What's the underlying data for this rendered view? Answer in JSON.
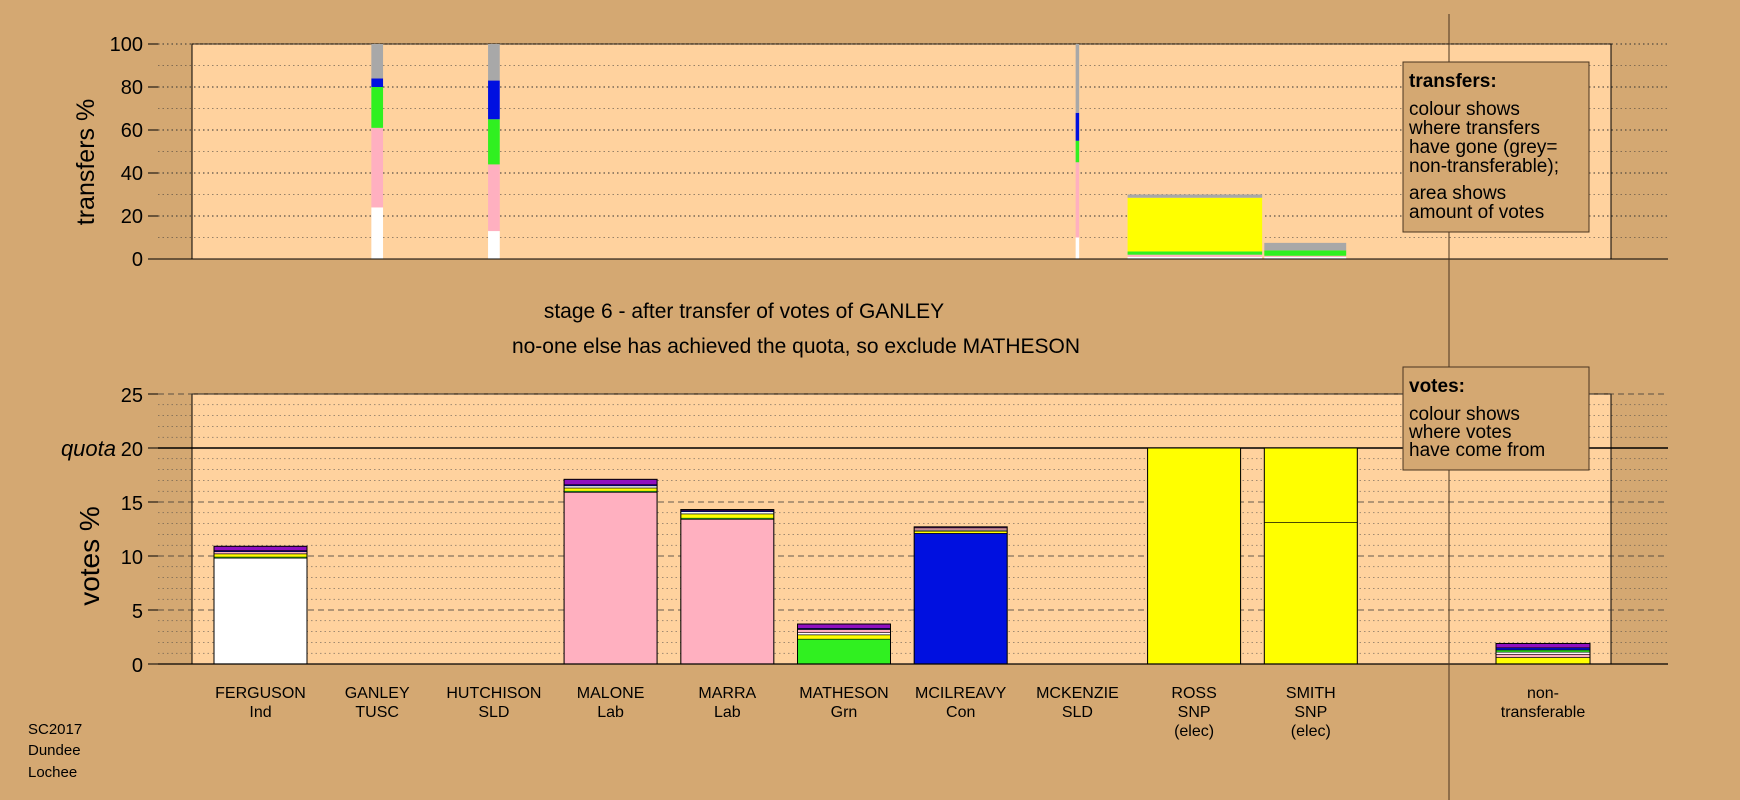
{
  "chart_data": [
    {
      "type": "bar",
      "title": "",
      "ylabel": "transfers %",
      "ylim": [
        0,
        100
      ],
      "yticks": [
        0,
        20,
        40,
        60,
        80,
        100
      ],
      "description_legend": {
        "heading": "transfers:",
        "lines_1": [
          "colour shows",
          "where transfers",
          "have gone (grey=",
          "non-transferable);"
        ],
        "lines_2": [
          "area shows",
          "amount of votes"
        ]
      },
      "bars": [
        {
          "candidate": "GANLEY",
          "width": 1,
          "segments": [
            {
              "party": "Ind",
              "value": 24
            },
            {
              "party": "Lab",
              "value": 37
            },
            {
              "party": "Grn",
              "value": 19
            },
            {
              "party": "Con",
              "value": 4
            },
            {
              "party": "NT",
              "value": 16
            }
          ]
        },
        {
          "candidate": "HUTCHISON",
          "width": 1,
          "segments": [
            {
              "party": "Ind",
              "value": 13
            },
            {
              "party": "Lab",
              "value": 31
            },
            {
              "party": "Grn",
              "value": 21
            },
            {
              "party": "Con",
              "value": 18
            },
            {
              "party": "NT",
              "value": 17
            }
          ]
        },
        {
          "candidate": "MCKENZIE",
          "width": 0.3,
          "segments": [
            {
              "party": "Ind",
              "value": 10
            },
            {
              "party": "Lab",
              "value": 35
            },
            {
              "party": "Grn",
              "value": 10
            },
            {
              "party": "Con",
              "value": 13
            },
            {
              "party": "NT",
              "value": 32
            }
          ]
        },
        {
          "candidate": "ROSS",
          "width": 11.5,
          "segments": [
            {
              "party": "Ind",
              "value": 1
            },
            {
              "party": "Lab",
              "value": 1
            },
            {
              "party": "Grn",
              "value": 1.5
            },
            {
              "party": "SNP",
              "value": 25
            },
            {
              "party": "NT",
              "value": 1.5
            }
          ]
        },
        {
          "candidate": "SMITH",
          "width": 7,
          "segments": [
            {
              "party": "Ind",
              "value": 1
            },
            {
              "party": "Lab",
              "value": 0.5
            },
            {
              "party": "Grn",
              "value": 2.5
            },
            {
              "party": "NT",
              "value": 3.5
            }
          ]
        }
      ]
    },
    {
      "type": "bar",
      "title": "stage 6 - after transfer of votes of GANLEY",
      "subtitle": "no-one else has achieved the quota, so exclude MATHESON",
      "ylabel": "votes %",
      "ylim": [
        0,
        25
      ],
      "yticks": [
        0,
        5,
        10,
        15,
        20,
        25
      ],
      "quota": 20,
      "quota_label": "quota",
      "description_legend": {
        "heading": "votes:",
        "lines": [
          "colour shows",
          "where votes",
          "have come from"
        ]
      },
      "categories": [
        {
          "name": "FERGUSON",
          "party": "Ind",
          "elected": false,
          "segments": [
            {
              "party": "Ind",
              "value": 9.8
            },
            {
              "party": "Grn",
              "value": 0.1
            },
            {
              "party": "SNP",
              "value": 0.3
            },
            {
              "party": "Lab",
              "value": 0.2
            },
            {
              "party": "Con",
              "value": 0.1
            },
            {
              "party": "TUSC",
              "value": 0.4
            }
          ]
        },
        {
          "name": "GANLEY",
          "party": "TUSC",
          "elected": false,
          "segments": []
        },
        {
          "name": "HUTCHISON",
          "party": "SLD",
          "elected": false,
          "segments": []
        },
        {
          "name": "MALONE",
          "party": "Lab",
          "elected": false,
          "segments": [
            {
              "party": "Lab",
              "value": 15.9
            },
            {
              "party": "Grn",
              "value": 0.1
            },
            {
              "party": "SNP",
              "value": 0.3
            },
            {
              "party": "Ind",
              "value": 0.2
            },
            {
              "party": "Con",
              "value": 0.1
            },
            {
              "party": "TUSC",
              "value": 0.5
            }
          ]
        },
        {
          "name": "MARRA",
          "party": "Lab",
          "elected": false,
          "segments": [
            {
              "party": "Lab",
              "value": 13.4
            },
            {
              "party": "Grn",
              "value": 0.1
            },
            {
              "party": "SNP",
              "value": 0.4
            },
            {
              "party": "Ind",
              "value": 0.2
            },
            {
              "party": "Con",
              "value": 0.1
            },
            {
              "party": "TUSC",
              "value": 0.1
            }
          ]
        },
        {
          "name": "MATHESON",
          "party": "Grn",
          "elected": false,
          "segments": [
            {
              "party": "Grn",
              "value": 2.3
            },
            {
              "party": "SNP",
              "value": 0.4
            },
            {
              "party": "Ind",
              "value": 0.2
            },
            {
              "party": "Lab",
              "value": 0.3
            },
            {
              "party": "Con",
              "value": 0.1
            },
            {
              "party": "TUSC",
              "value": 0.4
            }
          ]
        },
        {
          "name": "MCILREAVY",
          "party": "Con",
          "elected": false,
          "segments": [
            {
              "party": "Con",
              "value": 12.1
            },
            {
              "party": "SNP",
              "value": 0.2
            },
            {
              "party": "Ind",
              "value": 0.1
            },
            {
              "party": "Lab",
              "value": 0.2
            },
            {
              "party": "TUSC",
              "value": 0.1
            }
          ]
        },
        {
          "name": "MCKENZIE",
          "party": "SLD",
          "elected": false,
          "segments": []
        },
        {
          "name": "ROSS",
          "party": "SNP",
          "elected": true,
          "elected_label": "(elec)",
          "segments": [
            {
              "party": "SNP",
              "value": 20
            }
          ]
        },
        {
          "name": "SMITH",
          "party": "SNP",
          "elected": true,
          "elected_label": "(elec)",
          "segments": [
            {
              "party": "SNP",
              "value": 13.1
            },
            {
              "party": "SNP",
              "value": 6.9
            }
          ]
        },
        {
          "name": "non-",
          "party": "transferable",
          "elected": false,
          "nontransferable": true,
          "segments": [
            {
              "party": "SNP",
              "value": 0.6
            },
            {
              "party": "Lab",
              "value": 0.3
            },
            {
              "party": "Ind",
              "value": 0.2
            },
            {
              "party": "Grn",
              "value": 0.2
            },
            {
              "party": "Con",
              "value": 0.2
            },
            {
              "party": "TUSC",
              "value": 0.4
            }
          ]
        }
      ]
    }
  ],
  "colors": {
    "Ind": "#ffffff",
    "Lab": "#ffb0c0",
    "Grn": "#30f020",
    "Con": "#0010e0",
    "SNP": "#ffff00",
    "TUSC": "#9010c0",
    "NT": "#a8a8a8",
    "background": "#d4a872",
    "plot": "#ffd29e"
  },
  "footer": [
    "SC2017",
    "Dundee",
    "Lochee"
  ]
}
